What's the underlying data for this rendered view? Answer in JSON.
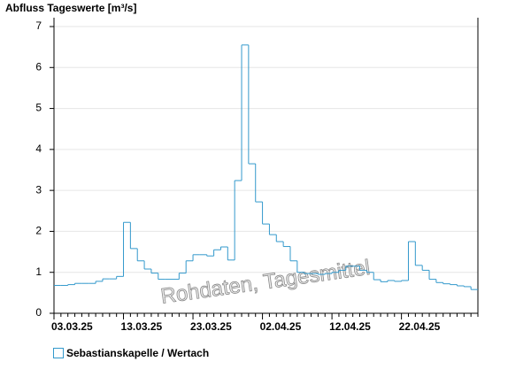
{
  "chart_data": {
    "type": "step",
    "title": "Abfluss Tageswerte [m³/s]",
    "watermark": "Rohdaten, Tagesmittel",
    "categories": [
      "03.03.25",
      null,
      null,
      null,
      null,
      null,
      null,
      null,
      null,
      null,
      "13.03.25",
      null,
      null,
      null,
      null,
      null,
      null,
      null,
      null,
      null,
      "23.03.25",
      null,
      null,
      null,
      null,
      null,
      null,
      null,
      null,
      null,
      "02.04.25",
      null,
      null,
      null,
      null,
      null,
      null,
      null,
      null,
      null,
      "12.04.25",
      null,
      null,
      null,
      null,
      null,
      null,
      null,
      null,
      null,
      "22.04.25",
      null,
      null,
      null,
      null,
      null,
      null,
      null,
      null,
      null,
      null
    ],
    "series": [
      {
        "name": "Sebastianskapelle / Wertach",
        "color": "#3399cc",
        "values": [
          0.68,
          0.68,
          0.7,
          0.73,
          0.73,
          0.73,
          0.78,
          0.84,
          0.84,
          0.9,
          2.22,
          1.58,
          1.28,
          1.08,
          0.98,
          0.83,
          0.83,
          0.83,
          0.98,
          1.28,
          1.43,
          1.43,
          1.4,
          1.55,
          1.62,
          1.3,
          3.24,
          6.55,
          3.65,
          2.72,
          2.18,
          1.92,
          1.75,
          1.63,
          1.28,
          1.0,
          0.97,
          0.97,
          0.95,
          0.97,
          1.0,
          1.05,
          1.15,
          1.15,
          1.05,
          1.0,
          0.82,
          0.77,
          0.8,
          0.78,
          0.8,
          1.75,
          1.17,
          1.05,
          0.83,
          0.75,
          0.72,
          0.7,
          0.67,
          0.65,
          0.58
        ]
      }
    ],
    "ylim": [
      0,
      7
    ],
    "yticks": [
      0,
      1,
      2,
      3,
      4,
      5,
      6,
      7
    ],
    "grid": true
  }
}
